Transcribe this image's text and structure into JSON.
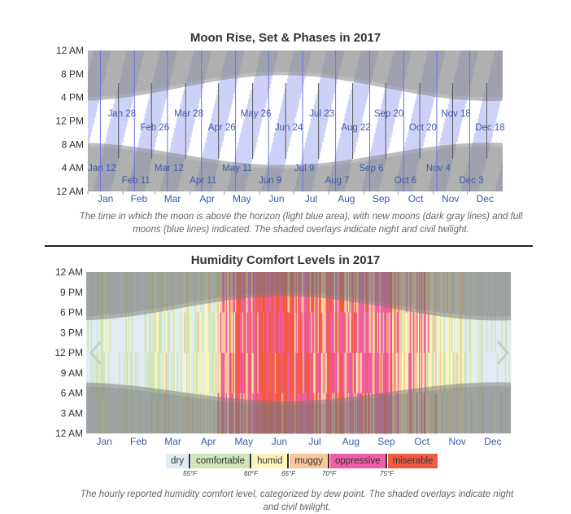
{
  "chart_data": [
    {
      "type": "area",
      "title": "Moon Rise, Set & Phases in 2017",
      "y_ticks": [
        "12 AM",
        "8 PM",
        "4 PM",
        "12 PM",
        "8 AM",
        "4 AM",
        "12 AM"
      ],
      "months": [
        "Jan",
        "Feb",
        "Mar",
        "Apr",
        "May",
        "Jun",
        "Jul",
        "Aug",
        "Sep",
        "Oct",
        "Nov",
        "Dec"
      ],
      "full_moons": [
        "Jan 12",
        "Feb 11",
        "Mar 12",
        "Apr 11",
        "May 11",
        "Jun 9",
        "Jul 9",
        "Aug 7",
        "Sep 6",
        "Oct 6",
        "Nov 4",
        "Dec 3"
      ],
      "new_moons": [
        "Jan 28",
        "Feb 26",
        "Mar 28",
        "Apr 26",
        "May 26",
        "Jun 24",
        "Jul 23",
        "Aug 22",
        "Sep 20",
        "Oct 20",
        "Nov 18",
        "Dec 18"
      ],
      "caption": "The time in which the moon is above the horizon (light blue area), with new moons (dark gray lines) and full moons (blue lines) indicated. The shaded overlays indicate night and civil twilight."
    },
    {
      "type": "heatmap",
      "title": "Humidity Comfort Levels in 2017",
      "y_ticks": [
        "12 AM",
        "9 PM",
        "6 PM",
        "3 PM",
        "12 PM",
        "9 AM",
        "6 AM",
        "3 AM",
        "12 AM"
      ],
      "months": [
        "Jan",
        "Feb",
        "Mar",
        "Apr",
        "May",
        "Jun",
        "Jul",
        "Aug",
        "Sep",
        "Oct",
        "Nov",
        "Dec"
      ],
      "categories": [
        {
          "label": "dry",
          "color": "#e0ecf2"
        },
        {
          "label": "comfortable",
          "color": "#cfe6b8"
        },
        {
          "label": "humid",
          "color": "#fbf5b8"
        },
        {
          "label": "muggy",
          "color": "#f8c79a"
        },
        {
          "label": "oppressive",
          "color": "#ee5fa5"
        },
        {
          "label": "miserable",
          "color": "#f25a43"
        }
      ],
      "thresholds": [
        "55°F",
        "60°F",
        "65°F",
        "70°F",
        "75°F"
      ],
      "monthly_dominant": [
        "dry",
        "dry",
        "comfortable",
        "comfortable",
        "oppressive",
        "miserable",
        "oppressive",
        "oppressive",
        "oppressive",
        "muggy",
        "comfortable",
        "dry"
      ],
      "caption": "The hourly reported humidity comfort level, categorized by dew point. The shaded overlays indicate night and civil twilight."
    }
  ]
}
